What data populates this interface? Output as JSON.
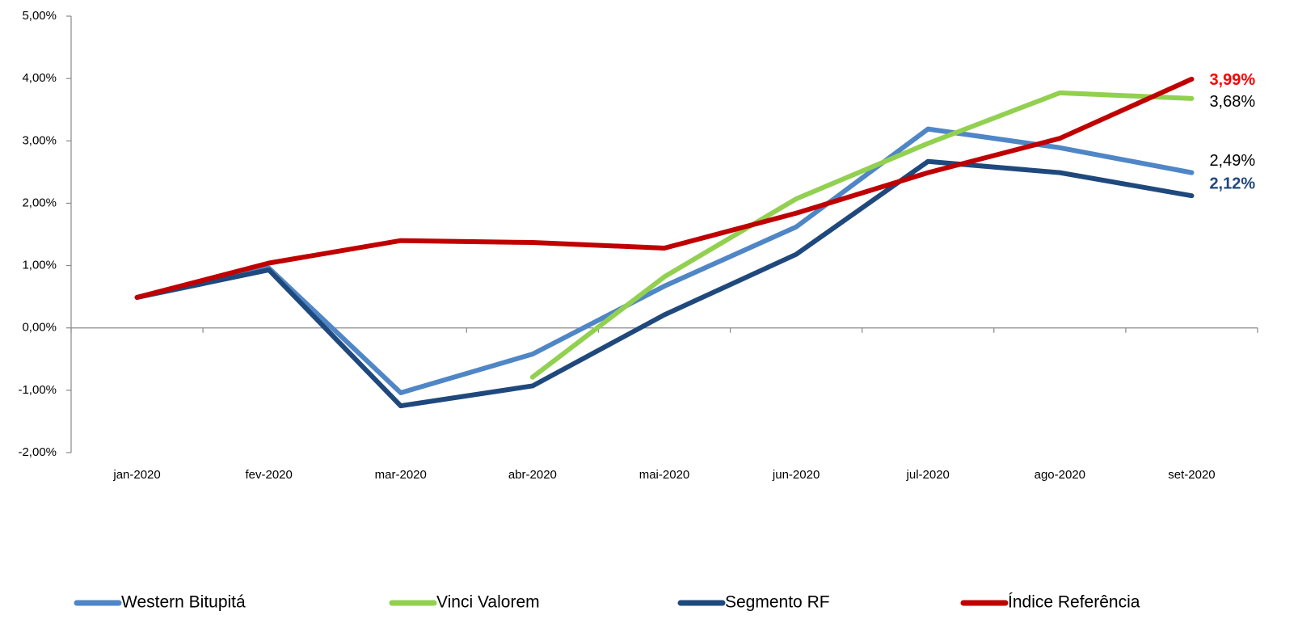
{
  "chart_data": {
    "type": "line",
    "categories": [
      "jan-2020",
      "fev-2020",
      "mar-2020",
      "abr-2020",
      "mai-2020",
      "jun-2020",
      "jul-2020",
      "ago-2020",
      "set-2020"
    ],
    "series": [
      {
        "name": "Western Bitupitá",
        "color": "#4f86c6",
        "values": [
          0.49,
          0.96,
          -1.04,
          -0.42,
          0.67,
          1.62,
          3.19,
          2.89,
          2.49
        ],
        "value_labels": [
          null,
          null,
          null,
          null,
          null,
          null,
          null,
          null,
          "2,49%"
        ],
        "label_color": "#000000",
        "label_bold": false
      },
      {
        "name": "Vinci Valorem",
        "color": "#92d050",
        "values": [
          null,
          null,
          null,
          -0.79,
          0.82,
          2.07,
          2.96,
          3.77,
          3.68
        ],
        "value_labels": [
          null,
          null,
          null,
          null,
          null,
          null,
          null,
          null,
          "3,68%"
        ],
        "label_color": "#000000",
        "label_bold": false
      },
      {
        "name": "Segmento RF",
        "color": "#1f497d",
        "values": [
          0.49,
          0.93,
          -1.25,
          -0.93,
          0.21,
          1.18,
          2.67,
          2.49,
          2.12
        ],
        "value_labels": [
          null,
          null,
          null,
          null,
          null,
          null,
          null,
          null,
          "2,12%"
        ],
        "label_color": "#1f497d",
        "label_bold": true
      },
      {
        "name": "Índice Referência",
        "color": "#c00000",
        "values": [
          0.49,
          1.04,
          1.4,
          1.37,
          1.28,
          1.84,
          2.49,
          3.04,
          3.99
        ],
        "value_labels": [
          null,
          null,
          null,
          null,
          null,
          null,
          null,
          null,
          "3,99%"
        ],
        "label_color": "#ff0000",
        "label_bold": true
      }
    ],
    "ylim": [
      -2,
      5
    ],
    "yticks": [
      {
        "value": -2,
        "label": "-2,00%"
      },
      {
        "value": -1,
        "label": "-1,00%"
      },
      {
        "value": 0,
        "label": "0,00%"
      },
      {
        "value": 1,
        "label": "1,00%"
      },
      {
        "value": 2,
        "label": "2,00%"
      },
      {
        "value": 3,
        "label": "3,00%"
      },
      {
        "value": 4,
        "label": "4,00%"
      },
      {
        "value": 5,
        "label": "5,00%"
      }
    ],
    "grid": false,
    "legend": "bottom"
  }
}
